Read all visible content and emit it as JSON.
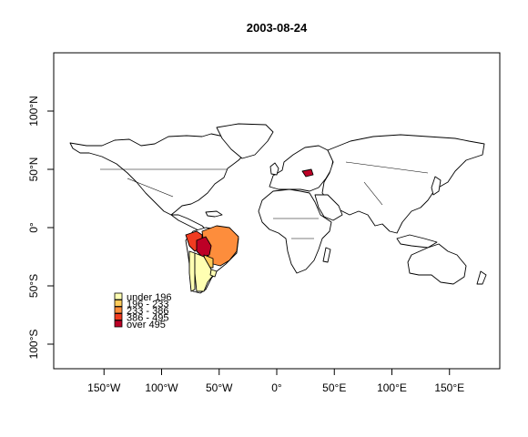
{
  "map": {
    "title": "2003-08-24",
    "projection": "longlat",
    "xlim": [
      -180,
      180
    ],
    "ylim": [
      -90,
      90
    ],
    "x_axis": {
      "ticks": [
        -150,
        -100,
        -50,
        0,
        50,
        100,
        150
      ],
      "labels": [
        "150°W",
        "100°W",
        "50°W",
        "0°",
        "50°E",
        "100°E",
        "150°E"
      ]
    },
    "y_axis": {
      "ticks": [
        100,
        50,
        0,
        -50,
        -100
      ],
      "labels": [
        "100°N",
        "50°N",
        "0°",
        "50°S",
        "100°S"
      ]
    },
    "background_land": "#ffffff",
    "legend": {
      "placement": "bottom-left",
      "classes": [
        {
          "label": "under 196",
          "color": "#FFFFB2"
        },
        {
          "label": "196 - 233",
          "color": "#FECC5C"
        },
        {
          "label": "233 - 386",
          "color": "#FD8D3C"
        },
        {
          "label": "386 - 495",
          "color": "#F03B20"
        },
        {
          "label": "over 495",
          "color": "#BD0026"
        }
      ]
    },
    "highlighted_regions": [
      {
        "name": "Brazil",
        "class": "233 - 386",
        "color": "#FD8D3C"
      },
      {
        "name": "Peru",
        "class": "386 - 495",
        "color": "#F03B20"
      },
      {
        "name": "Bolivia",
        "class": "over 495",
        "color": "#BD0026"
      },
      {
        "name": "Chile",
        "class": "under 196",
        "color": "#FFFFB2"
      },
      {
        "name": "Argentina",
        "class": "under 196",
        "color": "#FFFFB2"
      },
      {
        "name": "Paraguay",
        "class": "196 - 233",
        "color": "#FECC5C"
      },
      {
        "name": "Uruguay",
        "class": "under 196",
        "color": "#FFFFB2"
      },
      {
        "name": "Hungary",
        "class": "over 495",
        "color": "#BD0026"
      }
    ]
  }
}
